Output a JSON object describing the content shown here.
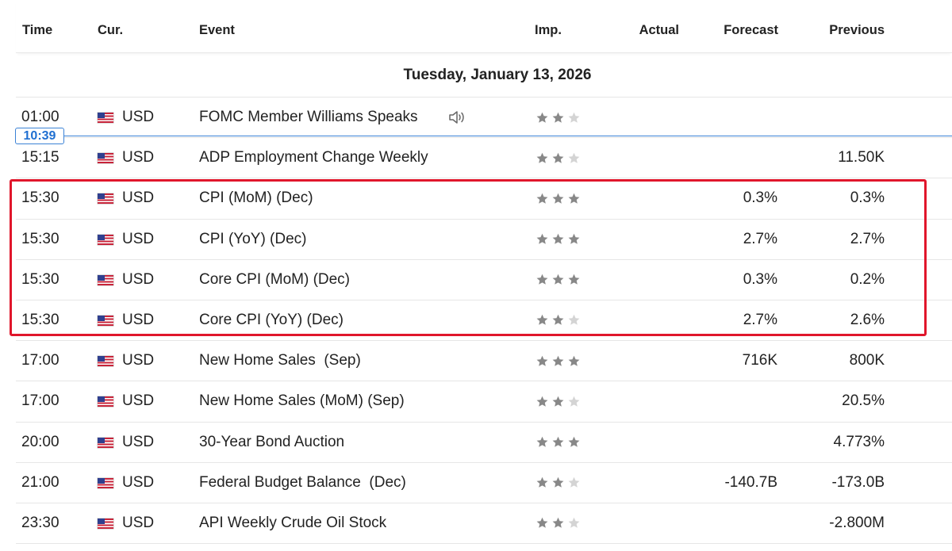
{
  "columns": {
    "time": "Time",
    "currency": "Cur.",
    "event": "Event",
    "importance": "Imp.",
    "actual": "Actual",
    "forecast": "Forecast",
    "previous": "Previous"
  },
  "date_header": "Tuesday, January 13, 2026",
  "current_time": "10:39",
  "colors": {
    "highlight": "#e0162b",
    "now_line": "#3b82d6",
    "star_on": "#888888",
    "star_off": "#d4d4d4"
  },
  "events": [
    {
      "time": "01:00",
      "currency": "USD",
      "event": "FOMC Member Williams Speaks",
      "importance": 2,
      "actual": "",
      "forecast": "",
      "previous": "",
      "has_audio": true
    },
    {
      "time": "15:15",
      "currency": "USD",
      "event": "ADP Employment Change Weekly",
      "importance": 2,
      "actual": "",
      "forecast": "",
      "previous": "11.50K"
    },
    {
      "time": "15:30",
      "currency": "USD",
      "event": "CPI (MoM) (Dec)",
      "importance": 3,
      "actual": "",
      "forecast": "0.3%",
      "previous": "0.3%"
    },
    {
      "time": "15:30",
      "currency": "USD",
      "event": "CPI (YoY) (Dec)",
      "importance": 3,
      "actual": "",
      "forecast": "2.7%",
      "previous": "2.7%"
    },
    {
      "time": "15:30",
      "currency": "USD",
      "event": "Core CPI (MoM) (Dec)",
      "importance": 3,
      "actual": "",
      "forecast": "0.3%",
      "previous": "0.2%"
    },
    {
      "time": "15:30",
      "currency": "USD",
      "event": "Core CPI (YoY) (Dec)",
      "importance": 2,
      "actual": "",
      "forecast": "2.7%",
      "previous": "2.6%"
    },
    {
      "time": "17:00",
      "currency": "USD",
      "event": "New Home Sales  (Sep)",
      "importance": 3,
      "actual": "",
      "forecast": "716K",
      "previous": "800K"
    },
    {
      "time": "17:00",
      "currency": "USD",
      "event": "New Home Sales (MoM) (Sep)",
      "importance": 2,
      "actual": "",
      "forecast": "",
      "previous": "20.5%"
    },
    {
      "time": "20:00",
      "currency": "USD",
      "event": "30-Year Bond Auction",
      "importance": 3,
      "actual": "",
      "forecast": "",
      "previous": "4.773%"
    },
    {
      "time": "21:00",
      "currency": "USD",
      "event": "Federal Budget Balance  (Dec)",
      "importance": 2,
      "actual": "",
      "forecast": "-140.7B",
      "previous": "-173.0B"
    },
    {
      "time": "23:30",
      "currency": "USD",
      "event": "API Weekly Crude Oil Stock",
      "importance": 2,
      "actual": "",
      "forecast": "",
      "previous": "-2.800M"
    }
  ]
}
